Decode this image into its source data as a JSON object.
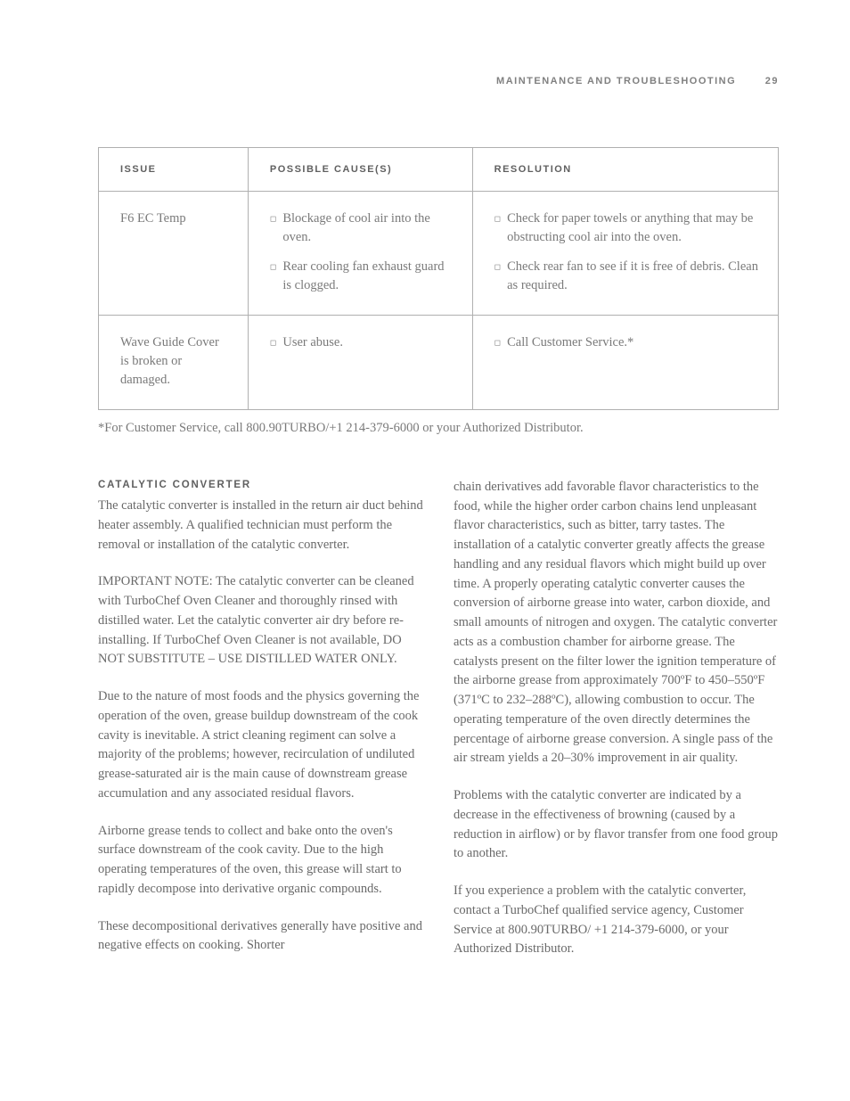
{
  "header": {
    "title": "MAINTENANCE AND TROUBLESHOOTING",
    "page_number": "29"
  },
  "table": {
    "headers": {
      "issue": "ISSUE",
      "cause": "POSSIBLE CAUSE(S)",
      "resolution": "RESOLUTION"
    },
    "rows": [
      {
        "issue": "F6 EC Temp",
        "causes": [
          "Blockage of cool air into the oven.",
          "Rear cooling fan exhaust guard is clogged."
        ],
        "resolutions": [
          "Check for paper towels or anything that may be obstructing cool air into the oven.",
          "Check rear fan to see if it is free of debris. Clean as required."
        ]
      },
      {
        "issue": "Wave Guide Cover is broken or damaged.",
        "causes": [
          "User abuse."
        ],
        "resolutions": [
          "Call Customer Service.*"
        ]
      }
    ]
  },
  "footnote": "*For Customer Service, call 800.90TURBO/+1 214-379-6000 or your Authorized Distributor.",
  "section": {
    "heading": "CATALYTIC CONVERTER",
    "left_paragraphs": [
      "The catalytic converter is installed in the return air duct behind heater assembly. A qualified technician must perform the removal or installation of the catalytic converter.",
      "IMPORTANT NOTE: The catalytic converter can be cleaned with TurboChef Oven Cleaner and thoroughly rinsed with distilled water. Let the catalytic converter air dry before re-installing. If TurboChef Oven Cleaner is not available, DO NOT SUBSTITUTE – USE DISTILLED WATER ONLY.",
      "Due to the nature of most foods and the physics governing the operation of the oven, grease buildup downstream of the cook cavity is inevitable. A strict cleaning regiment can solve a majority of the problems; however, recirculation of undiluted grease-saturated air is the main cause of downstream grease accumulation and any associated residual flavors.",
      "Airborne grease tends to collect and bake onto the oven's surface downstream of the cook cavity. Due to the high operating temperatures of the oven, this grease will start to rapidly decompose into derivative organic compounds.",
      "These decompositional derivatives generally have positive and negative effects on cooking. Shorter"
    ],
    "right_paragraphs": [
      "chain derivatives add favorable flavor characteristics to the food, while the higher order carbon chains lend unpleasant flavor characteristics, such as bitter, tarry tastes. The installation of a catalytic converter greatly affects the grease handling and any residual flavors which might build up over time. A properly operating catalytic converter causes the conversion of airborne grease into water, carbon dioxide, and small amounts of nitrogen and oxygen. The catalytic converter acts as a combustion chamber for airborne grease. The catalysts present on the filter lower the ignition temperature of the airborne grease from approximately 700ºF to 450–550ºF (371ºC to 232–288ºC), allowing combustion to occur. The operating temperature of the oven directly determines the percentage of airborne grease conversion. A single pass of the air stream yields a 20–30% improvement in air quality.",
      "Problems with the catalytic converter are indicated by a decrease in the effectiveness of browning (caused by a reduction in airflow) or by flavor transfer from one food group to another.",
      "If you experience a problem with the catalytic converter, contact a TurboChef qualified service agency, Customer Service at 800.90TURBO/ +1 214-379-6000, or your Authorized Distributor."
    ]
  }
}
